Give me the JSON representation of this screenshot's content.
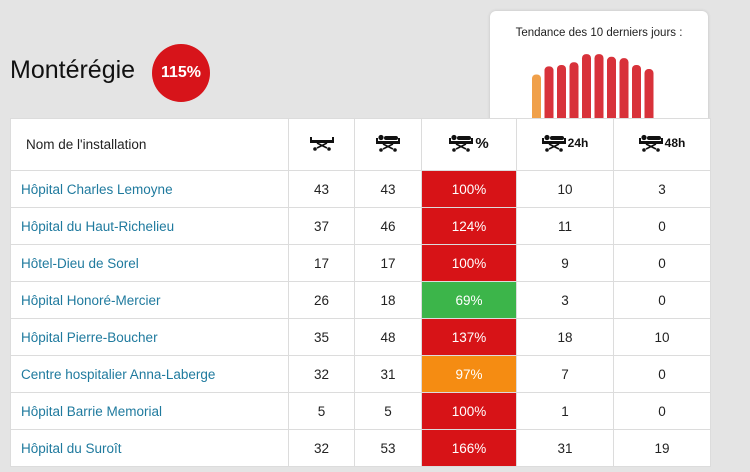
{
  "region": {
    "name": "Montérégie",
    "occupancy": "115%"
  },
  "trend": {
    "title": "Tendance des 10 derniers jours :",
    "values": [
      102,
      108,
      109,
      111,
      117,
      117,
      115,
      114,
      109,
      106
    ],
    "bar_colors": [
      "#f0a04a",
      "#d8323a",
      "#d8323a",
      "#d8323a",
      "#d8323a",
      "#d8323a",
      "#d8323a",
      "#d8323a",
      "#d8323a",
      "#d8323a"
    ],
    "colors": {
      "orange": "#f0a04a",
      "red": "#d8323a"
    }
  },
  "table": {
    "header": {
      "name": "Nom de l'installation",
      "col_icons": [
        "stretcher-icon",
        "occupied-stretcher-icon",
        "occupied-stretcher-percent-icon",
        "stretcher-24h-icon",
        "stretcher-48h-icon"
      ],
      "percent_suffix": "%",
      "h24_suffix": "24h",
      "h48_suffix": "48h"
    },
    "rows": [
      {
        "name": "Hôpital Charles Lemoyne",
        "functional": "43",
        "occupied": "43",
        "rate": "100%",
        "status": "red",
        "over24": "10",
        "over48": "3"
      },
      {
        "name": "Hôpital du Haut-Richelieu",
        "functional": "37",
        "occupied": "46",
        "rate": "124%",
        "status": "red",
        "over24": "11",
        "over48": "0"
      },
      {
        "name": "Hôtel-Dieu de Sorel",
        "functional": "17",
        "occupied": "17",
        "rate": "100%",
        "status": "red",
        "over24": "9",
        "over48": "0"
      },
      {
        "name": "Hôpital Honoré-Mercier",
        "functional": "26",
        "occupied": "18",
        "rate": "69%",
        "status": "green",
        "over24": "3",
        "over48": "0"
      },
      {
        "name": "Hôpital Pierre-Boucher",
        "functional": "35",
        "occupied": "48",
        "rate": "137%",
        "status": "red",
        "over24": "18",
        "over48": "10"
      },
      {
        "name": "Centre hospitalier Anna-Laberge",
        "functional": "32",
        "occupied": "31",
        "rate": "97%",
        "status": "orange",
        "over24": "7",
        "over48": "0"
      },
      {
        "name": "Hôpital Barrie Memorial",
        "functional": "5",
        "occupied": "5",
        "rate": "100%",
        "status": "red",
        "over24": "1",
        "over48": "0"
      },
      {
        "name": "Hôpital du Suroît",
        "functional": "32",
        "occupied": "53",
        "rate": "166%",
        "status": "red",
        "over24": "31",
        "over48": "19"
      }
    ],
    "status_colors": {
      "red": "#d71317",
      "green": "#3cb54a",
      "orange": "#f58c12"
    }
  }
}
